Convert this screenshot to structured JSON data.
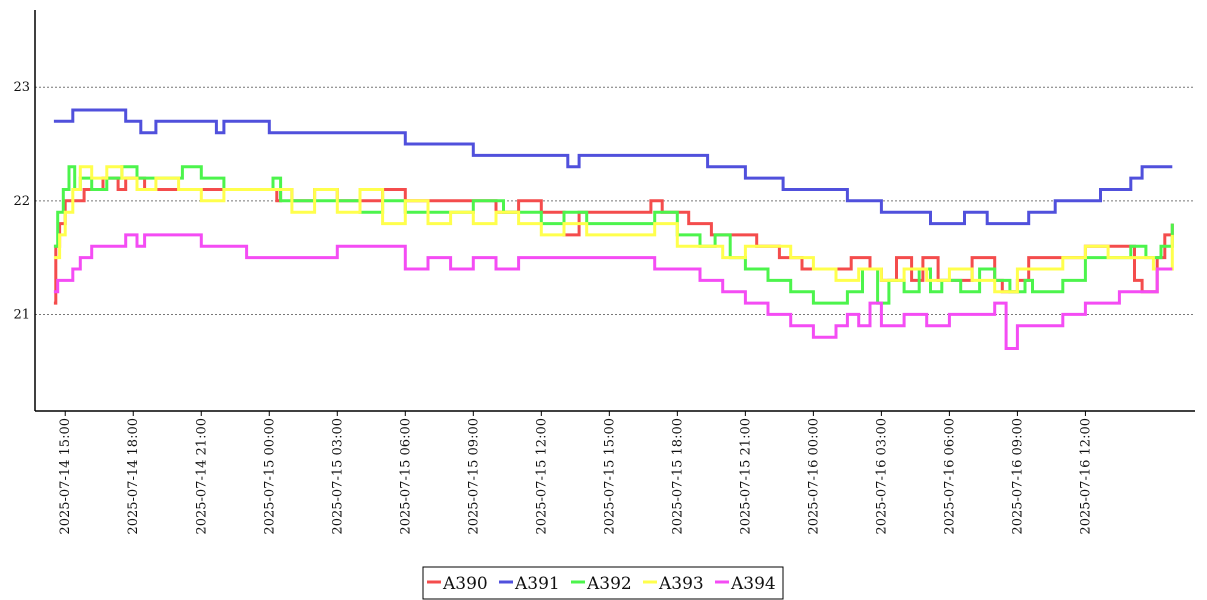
{
  "chart_data": {
    "type": "line",
    "title": "",
    "xlabel": "",
    "ylabel": "",
    "xlim": [
      "2025-07-14 13:40",
      "2025-07-16 16:50"
    ],
    "ylim": [
      20.15,
      23.68
    ],
    "x_ticks": [
      "2025-07-14 15:00",
      "2025-07-14 18:00",
      "2025-07-14 21:00",
      "2025-07-15 00:00",
      "2025-07-15 03:00",
      "2025-07-15 06:00",
      "2025-07-15 09:00",
      "2025-07-15 12:00",
      "2025-07-15 15:00",
      "2025-07-15 18:00",
      "2025-07-15 21:00",
      "2025-07-16 00:00",
      "2025-07-16 03:00",
      "2025-07-16 06:00",
      "2025-07-16 09:00",
      "2025-07-16 12:00"
    ],
    "y_ticks": [
      21,
      22,
      23
    ],
    "grid": "horizontal dotted",
    "legend_position": "bottom-center",
    "series": [
      {
        "name": "A390",
        "color": "#f44c4c",
        "points": [
          [
            "2025-07-14 14:30",
            21.1
          ],
          [
            "2025-07-14 14:35",
            21.6
          ],
          [
            "2025-07-14 14:45",
            21.8
          ],
          [
            "2025-07-14 15:00",
            22.0
          ],
          [
            "2025-07-14 15:50",
            22.1
          ],
          [
            "2025-07-14 16:40",
            22.2
          ],
          [
            "2025-07-14 17:20",
            22.1
          ],
          [
            "2025-07-14 17:40",
            22.2
          ],
          [
            "2025-07-14 18:30",
            22.1
          ],
          [
            "2025-07-14 21:00",
            22.1
          ],
          [
            "2025-07-15 00:00",
            22.1
          ],
          [
            "2025-07-15 00:20",
            22.0
          ],
          [
            "2025-07-15 00:30",
            22.1
          ],
          [
            "2025-07-15 01:00",
            22.0
          ],
          [
            "2025-07-15 02:00",
            22.1
          ],
          [
            "2025-07-15 03:00",
            22.0
          ],
          [
            "2025-07-15 04:00",
            22.0
          ],
          [
            "2025-07-15 05:00",
            22.1
          ],
          [
            "2025-07-15 06:00",
            22.0
          ],
          [
            "2025-07-15 09:00",
            22.0
          ],
          [
            "2025-07-15 10:00",
            21.9
          ],
          [
            "2025-07-15 11:00",
            22.0
          ],
          [
            "2025-07-15 12:00",
            21.9
          ],
          [
            "2025-07-15 13:00",
            21.7
          ],
          [
            "2025-07-15 13:40",
            21.9
          ],
          [
            "2025-07-15 16:00",
            21.9
          ],
          [
            "2025-07-15 16:50",
            22.0
          ],
          [
            "2025-07-15 17:20",
            21.9
          ],
          [
            "2025-07-15 18:30",
            21.8
          ],
          [
            "2025-07-15 19:30",
            21.7
          ],
          [
            "2025-07-15 20:30",
            21.7
          ],
          [
            "2025-07-15 21:30",
            21.6
          ],
          [
            "2025-07-15 22:30",
            21.5
          ],
          [
            "2025-07-15 23:30",
            21.4
          ],
          [
            "2025-07-16 01:00",
            21.4
          ],
          [
            "2025-07-16 01:40",
            21.5
          ],
          [
            "2025-07-16 02:30",
            21.4
          ],
          [
            "2025-07-16 03:00",
            21.3
          ],
          [
            "2025-07-16 03:40",
            21.5
          ],
          [
            "2025-07-16 04:20",
            21.3
          ],
          [
            "2025-07-16 04:50",
            21.5
          ],
          [
            "2025-07-16 05:30",
            21.3
          ],
          [
            "2025-07-16 06:10",
            21.3
          ],
          [
            "2025-07-16 07:00",
            21.5
          ],
          [
            "2025-07-16 08:00",
            21.3
          ],
          [
            "2025-07-16 08:20",
            21.2
          ],
          [
            "2025-07-16 09:00",
            21.3
          ],
          [
            "2025-07-16 09:30",
            21.5
          ],
          [
            "2025-07-16 11:00",
            21.5
          ],
          [
            "2025-07-16 12:00",
            21.6
          ],
          [
            "2025-07-16 13:30",
            21.6
          ],
          [
            "2025-07-16 14:10",
            21.3
          ],
          [
            "2025-07-16 14:30",
            21.2
          ],
          [
            "2025-07-16 14:55",
            21.2
          ],
          [
            "2025-07-16 15:10",
            21.5
          ],
          [
            "2025-07-16 15:30",
            21.7
          ],
          [
            "2025-07-16 15:50",
            21.8
          ]
        ]
      },
      {
        "name": "A391",
        "color": "#5050dc",
        "points": [
          [
            "2025-07-14 14:30",
            22.7
          ],
          [
            "2025-07-14 15:20",
            22.8
          ],
          [
            "2025-07-14 17:40",
            22.7
          ],
          [
            "2025-07-14 18:20",
            22.6
          ],
          [
            "2025-07-14 19:00",
            22.7
          ],
          [
            "2025-07-14 21:40",
            22.6
          ],
          [
            "2025-07-14 22:00",
            22.7
          ],
          [
            "2025-07-15 00:00",
            22.6
          ],
          [
            "2025-07-15 06:00",
            22.5
          ],
          [
            "2025-07-15 09:00",
            22.4
          ],
          [
            "2025-07-15 11:00",
            22.4
          ],
          [
            "2025-07-15 12:00",
            22.4
          ],
          [
            "2025-07-15 13:10",
            22.3
          ],
          [
            "2025-07-15 13:40",
            22.4
          ],
          [
            "2025-07-15 16:00",
            22.4
          ],
          [
            "2025-07-15 18:00",
            22.4
          ],
          [
            "2025-07-15 19:20",
            22.3
          ],
          [
            "2025-07-15 21:00",
            22.2
          ],
          [
            "2025-07-15 22:40",
            22.1
          ],
          [
            "2025-07-16 00:00",
            22.1
          ],
          [
            "2025-07-16 01:30",
            22.0
          ],
          [
            "2025-07-16 03:00",
            21.9
          ],
          [
            "2025-07-16 05:00",
            21.9
          ],
          [
            "2025-07-16 05:10",
            21.8
          ],
          [
            "2025-07-16 06:40",
            21.9
          ],
          [
            "2025-07-16 07:40",
            21.8
          ],
          [
            "2025-07-16 08:30",
            21.8
          ],
          [
            "2025-07-16 09:30",
            21.9
          ],
          [
            "2025-07-16 10:40",
            22.0
          ],
          [
            "2025-07-16 12:00",
            22.0
          ],
          [
            "2025-07-16 12:40",
            22.1
          ],
          [
            "2025-07-16 13:30",
            22.1
          ],
          [
            "2025-07-16 14:00",
            22.2
          ],
          [
            "2025-07-16 14:30",
            22.3
          ],
          [
            "2025-07-16 15:50",
            22.3
          ]
        ]
      },
      {
        "name": "A392",
        "color": "#4cf44c",
        "points": [
          [
            "2025-07-14 14:30",
            21.6
          ],
          [
            "2025-07-14 14:40",
            21.9
          ],
          [
            "2025-07-14 14:55",
            22.1
          ],
          [
            "2025-07-14 15:10",
            22.3
          ],
          [
            "2025-07-14 15:25",
            22.1
          ],
          [
            "2025-07-14 15:40",
            22.2
          ],
          [
            "2025-07-14 16:10",
            22.1
          ],
          [
            "2025-07-14 16:50",
            22.2
          ],
          [
            "2025-07-14 17:30",
            22.3
          ],
          [
            "2025-07-14 18:10",
            22.2
          ],
          [
            "2025-07-14 19:20",
            22.2
          ],
          [
            "2025-07-14 20:10",
            22.3
          ],
          [
            "2025-07-14 21:00",
            22.2
          ],
          [
            "2025-07-14 22:00",
            22.1
          ],
          [
            "2025-07-15 00:00",
            22.1
          ],
          [
            "2025-07-15 00:10",
            22.2
          ],
          [
            "2025-07-15 00:30",
            22.0
          ],
          [
            "2025-07-15 02:00",
            22.0
          ],
          [
            "2025-07-15 03:00",
            22.0
          ],
          [
            "2025-07-15 04:00",
            21.9
          ],
          [
            "2025-07-15 05:00",
            22.0
          ],
          [
            "2025-07-15 06:00",
            21.9
          ],
          [
            "2025-07-15 08:00",
            21.9
          ],
          [
            "2025-07-15 09:00",
            22.0
          ],
          [
            "2025-07-15 10:20",
            21.9
          ],
          [
            "2025-07-15 12:00",
            21.8
          ],
          [
            "2025-07-15 13:00",
            21.9
          ],
          [
            "2025-07-15 14:00",
            21.8
          ],
          [
            "2025-07-15 16:00",
            21.8
          ],
          [
            "2025-07-15 17:00",
            21.9
          ],
          [
            "2025-07-15 18:00",
            21.7
          ],
          [
            "2025-07-15 19:00",
            21.6
          ],
          [
            "2025-07-15 19:40",
            21.7
          ],
          [
            "2025-07-15 20:20",
            21.5
          ],
          [
            "2025-07-15 21:00",
            21.4
          ],
          [
            "2025-07-15 22:00",
            21.3
          ],
          [
            "2025-07-15 23:00",
            21.2
          ],
          [
            "2025-07-16 00:00",
            21.1
          ],
          [
            "2025-07-16 01:30",
            21.2
          ],
          [
            "2025-07-16 02:10",
            21.4
          ],
          [
            "2025-07-16 02:50",
            21.1
          ],
          [
            "2025-07-16 03:20",
            21.3
          ],
          [
            "2025-07-16 04:00",
            21.2
          ],
          [
            "2025-07-16 04:40",
            21.4
          ],
          [
            "2025-07-16 05:10",
            21.2
          ],
          [
            "2025-07-16 05:40",
            21.3
          ],
          [
            "2025-07-16 06:30",
            21.2
          ],
          [
            "2025-07-16 07:20",
            21.4
          ],
          [
            "2025-07-16 08:00",
            21.3
          ],
          [
            "2025-07-16 08:40",
            21.2
          ],
          [
            "2025-07-16 09:20",
            21.3
          ],
          [
            "2025-07-16 09:40",
            21.2
          ],
          [
            "2025-07-16 11:00",
            21.3
          ],
          [
            "2025-07-16 12:00",
            21.5
          ],
          [
            "2025-07-16 13:00",
            21.5
          ],
          [
            "2025-07-16 14:00",
            21.6
          ],
          [
            "2025-07-16 14:40",
            21.5
          ],
          [
            "2025-07-16 15:20",
            21.6
          ],
          [
            "2025-07-16 15:50",
            21.8
          ]
        ]
      },
      {
        "name": "A393",
        "color": "#ffff4c",
        "points": [
          [
            "2025-07-14 14:30",
            21.5
          ],
          [
            "2025-07-14 14:45",
            21.7
          ],
          [
            "2025-07-14 15:00",
            21.9
          ],
          [
            "2025-07-14 15:20",
            22.1
          ],
          [
            "2025-07-14 15:40",
            22.3
          ],
          [
            "2025-07-14 16:10",
            22.2
          ],
          [
            "2025-07-14 16:50",
            22.3
          ],
          [
            "2025-07-14 17:30",
            22.2
          ],
          [
            "2025-07-14 18:10",
            22.1
          ],
          [
            "2025-07-14 19:00",
            22.2
          ],
          [
            "2025-07-14 20:00",
            22.1
          ],
          [
            "2025-07-14 21:00",
            22.0
          ],
          [
            "2025-07-14 22:00",
            22.1
          ],
          [
            "2025-07-15 00:00",
            22.1
          ],
          [
            "2025-07-15 01:00",
            21.9
          ],
          [
            "2025-07-15 02:00",
            22.1
          ],
          [
            "2025-07-15 03:00",
            21.9
          ],
          [
            "2025-07-15 04:00",
            22.1
          ],
          [
            "2025-07-15 05:00",
            21.8
          ],
          [
            "2025-07-15 06:00",
            22.0
          ],
          [
            "2025-07-15 07:00",
            21.8
          ],
          [
            "2025-07-15 08:00",
            21.9
          ],
          [
            "2025-07-15 09:00",
            21.8
          ],
          [
            "2025-07-15 10:00",
            21.9
          ],
          [
            "2025-07-15 11:00",
            21.8
          ],
          [
            "2025-07-15 12:00",
            21.7
          ],
          [
            "2025-07-15 13:00",
            21.8
          ],
          [
            "2025-07-15 14:00",
            21.7
          ],
          [
            "2025-07-15 16:00",
            21.7
          ],
          [
            "2025-07-15 17:00",
            21.8
          ],
          [
            "2025-07-15 18:00",
            21.6
          ],
          [
            "2025-07-15 19:00",
            21.6
          ],
          [
            "2025-07-15 20:00",
            21.5
          ],
          [
            "2025-07-15 21:00",
            21.6
          ],
          [
            "2025-07-15 22:00",
            21.6
          ],
          [
            "2025-07-15 23:00",
            21.5
          ],
          [
            "2025-07-16 00:00",
            21.4
          ],
          [
            "2025-07-16 01:00",
            21.3
          ],
          [
            "2025-07-16 02:00",
            21.4
          ],
          [
            "2025-07-16 03:00",
            21.3
          ],
          [
            "2025-07-16 04:00",
            21.4
          ],
          [
            "2025-07-16 05:00",
            21.3
          ],
          [
            "2025-07-16 06:00",
            21.4
          ],
          [
            "2025-07-16 07:00",
            21.3
          ],
          [
            "2025-07-16 08:00",
            21.2
          ],
          [
            "2025-07-16 09:00",
            21.4
          ],
          [
            "2025-07-16 10:00",
            21.4
          ],
          [
            "2025-07-16 11:00",
            21.5
          ],
          [
            "2025-07-16 12:00",
            21.6
          ],
          [
            "2025-07-16 13:00",
            21.5
          ],
          [
            "2025-07-16 14:00",
            21.5
          ],
          [
            "2025-07-16 15:00",
            21.4
          ],
          [
            "2025-07-16 15:50",
            21.7
          ]
        ]
      },
      {
        "name": "A394",
        "color": "#f44cf4",
        "points": [
          [
            "2025-07-14 14:30",
            21.2
          ],
          [
            "2025-07-14 14:40",
            21.3
          ],
          [
            "2025-07-14 15:20",
            21.4
          ],
          [
            "2025-07-14 15:40",
            21.5
          ],
          [
            "2025-07-14 16:10",
            21.6
          ],
          [
            "2025-07-14 17:40",
            21.7
          ],
          [
            "2025-07-14 18:10",
            21.6
          ],
          [
            "2025-07-14 18:30",
            21.7
          ],
          [
            "2025-07-14 21:00",
            21.6
          ],
          [
            "2025-07-14 23:00",
            21.5
          ],
          [
            "2025-07-15 00:00",
            21.5
          ],
          [
            "2025-07-15 02:00",
            21.5
          ],
          [
            "2025-07-15 03:00",
            21.6
          ],
          [
            "2025-07-15 06:00",
            21.4
          ],
          [
            "2025-07-15 07:00",
            21.5
          ],
          [
            "2025-07-15 08:00",
            21.4
          ],
          [
            "2025-07-15 09:00",
            21.5
          ],
          [
            "2025-07-15 10:00",
            21.4
          ],
          [
            "2025-07-15 11:00",
            21.5
          ],
          [
            "2025-07-15 12:00",
            21.5
          ],
          [
            "2025-07-15 15:00",
            21.5
          ],
          [
            "2025-07-15 17:00",
            21.4
          ],
          [
            "2025-07-15 18:00",
            21.4
          ],
          [
            "2025-07-15 19:00",
            21.3
          ],
          [
            "2025-07-15 20:00",
            21.2
          ],
          [
            "2025-07-15 21:00",
            21.1
          ],
          [
            "2025-07-15 22:00",
            21.0
          ],
          [
            "2025-07-15 23:00",
            20.9
          ],
          [
            "2025-07-16 00:00",
            20.8
          ],
          [
            "2025-07-16 01:00",
            20.9
          ],
          [
            "2025-07-16 01:30",
            21.0
          ],
          [
            "2025-07-16 02:00",
            20.9
          ],
          [
            "2025-07-16 02:30",
            21.1
          ],
          [
            "2025-07-16 03:00",
            20.9
          ],
          [
            "2025-07-16 04:00",
            21.0
          ],
          [
            "2025-07-16 05:00",
            20.9
          ],
          [
            "2025-07-16 06:00",
            21.0
          ],
          [
            "2025-07-16 07:00",
            21.0
          ],
          [
            "2025-07-16 08:00",
            21.1
          ],
          [
            "2025-07-16 08:30",
            20.7
          ],
          [
            "2025-07-16 09:00",
            20.9
          ],
          [
            "2025-07-16 10:00",
            20.9
          ],
          [
            "2025-07-16 11:00",
            21.0
          ],
          [
            "2025-07-16 12:00",
            21.1
          ],
          [
            "2025-07-16 13:30",
            21.2
          ],
          [
            "2025-07-16 14:30",
            21.2
          ],
          [
            "2025-07-16 15:10",
            21.4
          ],
          [
            "2025-07-16 15:50",
            21.4
          ]
        ]
      }
    ]
  }
}
